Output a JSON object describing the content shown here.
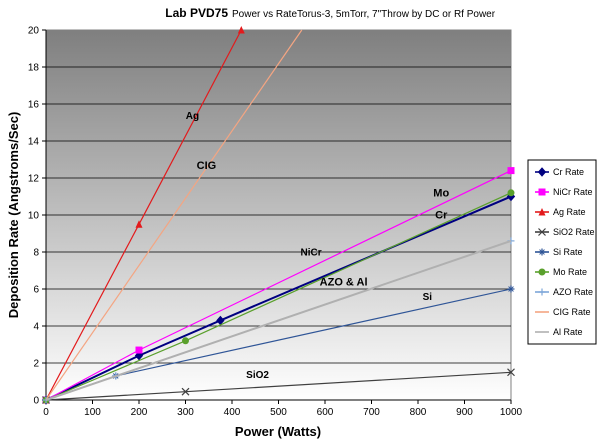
{
  "chart_data": {
    "type": "line",
    "title": "Lab PVD75",
    "subtitle": "Power vs RateTorus-3,  5mTorr, 7\"Throw by DC or Rf Power",
    "xlabel": "Power (Watts)",
    "ylabel": "Deposition Rate (Angstroms/Sec)",
    "xlim": [
      0,
      1000
    ],
    "ylim": [
      0,
      20
    ],
    "xticks": [
      0,
      100,
      200,
      300,
      400,
      500,
      600,
      700,
      800,
      900,
      1000
    ],
    "yticks": [
      0,
      2,
      4,
      6,
      8,
      10,
      12,
      14,
      16,
      18,
      20
    ],
    "grid": true,
    "legend_position": "right",
    "series": [
      {
        "name": "Cr Rate",
        "color": "#000080",
        "marker": "diamond",
        "x": [
          0,
          200,
          375,
          1000
        ],
        "y": [
          0,
          2.4,
          4.3,
          11.0
        ]
      },
      {
        "name": "NiCr Rate",
        "color": "#ff00ff",
        "marker": "square",
        "x": [
          0,
          200,
          1000
        ],
        "y": [
          0,
          2.7,
          12.4
        ]
      },
      {
        "name": "Ag Rate",
        "color": "#e31a1c",
        "marker": "triangle",
        "x": [
          0,
          200,
          420
        ],
        "y": [
          0,
          9.5,
          20.0
        ]
      },
      {
        "name": "SiO2 Rate",
        "color": "#404040",
        "marker": "x",
        "x": [
          0,
          300,
          1000
        ],
        "y": [
          0,
          0.45,
          1.5
        ]
      },
      {
        "name": "Si Rate",
        "color": "#2f5597",
        "marker": "star",
        "x": [
          0,
          150,
          1000
        ],
        "y": [
          0,
          1.3,
          6.0
        ]
      },
      {
        "name": "Mo Rate",
        "color": "#5aa02c",
        "marker": "circle",
        "x": [
          0,
          300,
          1000
        ],
        "y": [
          0,
          3.2,
          11.2
        ]
      },
      {
        "name": "AZO Rate",
        "color": "#7da7d9",
        "marker": "plus",
        "x": [
          0,
          150,
          1000
        ],
        "y": [
          0,
          1.3,
          8.6
        ]
      },
      {
        "name": "CIG Rate",
        "color": "#f4a582",
        "marker": "none",
        "x": [
          0,
          550
        ],
        "y": [
          0,
          20.0
        ]
      },
      {
        "name": "Al Rate",
        "color": "#b0b0b0",
        "marker": "none",
        "x": [
          0,
          1000
        ],
        "y": [
          0,
          8.6
        ]
      }
    ],
    "annotations": [
      {
        "text": "Ag",
        "x": 315,
        "y": 15.2
      },
      {
        "text": "CIG",
        "x": 345,
        "y": 12.5
      },
      {
        "text": "Mo",
        "x": 850,
        "y": 11.0
      },
      {
        "text": "Cr",
        "x": 850,
        "y": 9.8
      },
      {
        "text": "NiCr",
        "x": 570,
        "y": 7.8
      },
      {
        "text": "AZO  & Al",
        "x": 640,
        "y": 6.2
      },
      {
        "text": "Si",
        "x": 820,
        "y": 5.4
      },
      {
        "text": "SiO2",
        "x": 455,
        "y": 1.2
      }
    ]
  }
}
